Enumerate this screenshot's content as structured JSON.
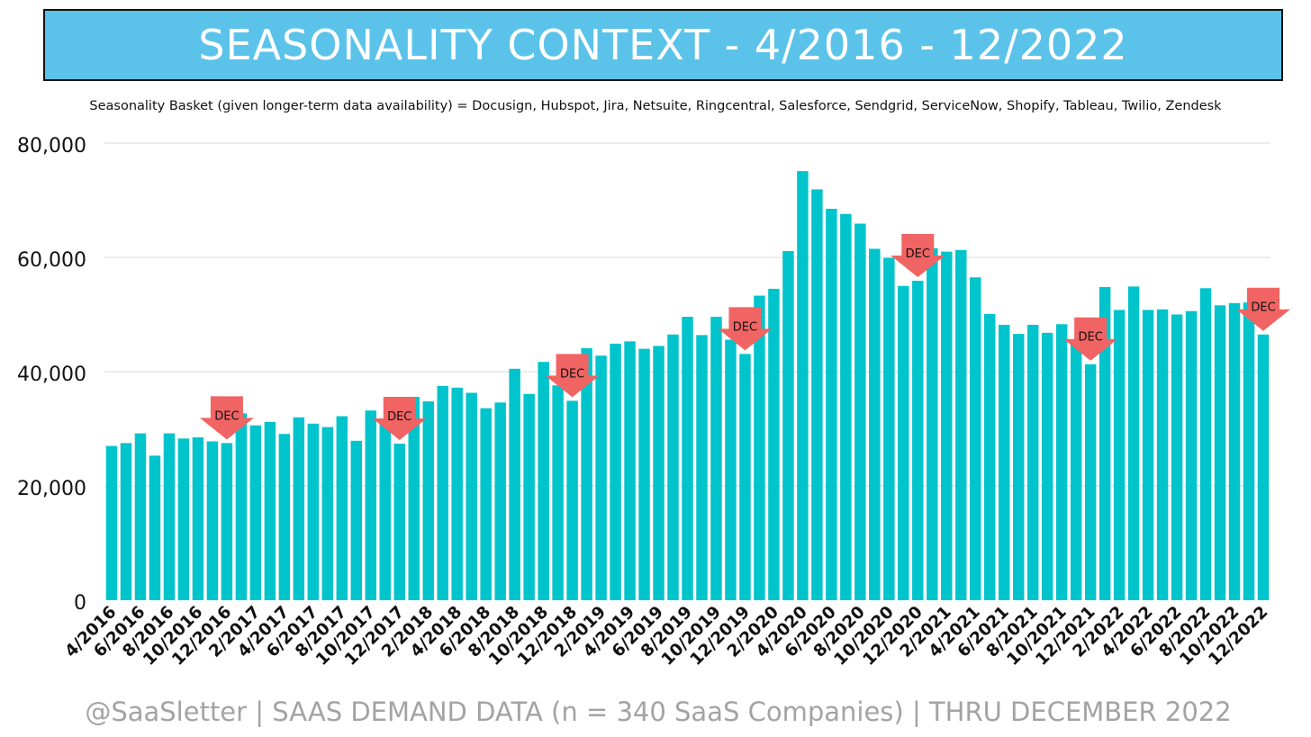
{
  "title": "SEASONALITY CONTEXT - 4/2016 - 12/2022",
  "subtitle": "Seasonality Basket (given longer-term data availability) = Docusign, Hubspot, Jira, Netsuite, Ringcentral, Salesforce, Sendgrid, ServiceNow, Shopify, Tableau, Twilio, Zendesk",
  "footer": "@SaaSletter | SAAS DEMAND DATA (n = 340 SaaS Companies) | THRU DECEMBER 2022",
  "colors": {
    "bar": "#00c4cc",
    "banner": "#5bc3ea",
    "arrow": "#f06464",
    "footer_text": "#a3a3a3"
  },
  "chart_data": {
    "type": "bar",
    "title": "SEASONALITY CONTEXT - 4/2016 - 12/2022",
    "xlabel": "",
    "ylabel": "",
    "ylim": [
      0,
      80000
    ],
    "yticks": [
      0,
      20000,
      40000,
      60000,
      80000
    ],
    "ytick_labels": [
      "0",
      "20,000",
      "40,000",
      "60,000",
      "80,000"
    ],
    "grid": true,
    "categories": [
      "4/2016",
      "5/2016",
      "6/2016",
      "7/2016",
      "8/2016",
      "9/2016",
      "10/2016",
      "11/2016",
      "12/2016",
      "1/2017",
      "2/2017",
      "3/2017",
      "4/2017",
      "5/2017",
      "6/2017",
      "7/2017",
      "8/2017",
      "9/2017",
      "10/2017",
      "11/2017",
      "12/2017",
      "1/2018",
      "2/2018",
      "3/2018",
      "4/2018",
      "5/2018",
      "6/2018",
      "7/2018",
      "8/2018",
      "9/2018",
      "10/2018",
      "11/2018",
      "12/2018",
      "1/2019",
      "2/2019",
      "3/2019",
      "4/2019",
      "5/2019",
      "6/2019",
      "7/2019",
      "8/2019",
      "9/2019",
      "10/2019",
      "11/2019",
      "12/2019",
      "1/2020",
      "2/2020",
      "3/2020",
      "4/2020",
      "5/2020",
      "6/2020",
      "7/2020",
      "8/2020",
      "9/2020",
      "10/2020",
      "11/2020",
      "12/2020",
      "1/2021",
      "2/2021",
      "3/2021",
      "4/2021",
      "5/2021",
      "6/2021",
      "7/2021",
      "8/2021",
      "9/2021",
      "10/2021",
      "11/2021",
      "12/2021",
      "1/2022",
      "2/2022",
      "3/2022",
      "4/2022",
      "5/2022",
      "6/2022",
      "7/2022",
      "8/2022",
      "9/2022",
      "10/2022",
      "11/2022",
      "12/2022"
    ],
    "values": [
      27000,
      27500,
      29200,
      25300,
      29200,
      28300,
      28500,
      27800,
      27500,
      32700,
      30600,
      31200,
      29100,
      32000,
      30900,
      30300,
      32200,
      27900,
      33200,
      31600,
      27400,
      35600,
      34800,
      37500,
      37200,
      36300,
      33600,
      34600,
      40500,
      36100,
      41700,
      37600,
      34900,
      44100,
      42800,
      44900,
      45300,
      44000,
      44500,
      46500,
      49600,
      46400,
      49600,
      45600,
      43100,
      53300,
      54500,
      61100,
      75100,
      71900,
      68500,
      67600,
      65900,
      61500,
      59900,
      55000,
      55900,
      61600,
      61000,
      61300,
      56500,
      50100,
      48200,
      46600,
      48200,
      46800,
      48300,
      44800,
      41300,
      54800,
      50800,
      54900,
      50800,
      50900,
      50000,
      50600,
      54600,
      51600,
      52000,
      52100,
      46500
    ],
    "xtick_labels": [
      "4/2016",
      "6/2016",
      "8/2016",
      "10/2016",
      "12/2016",
      "2/2017",
      "4/2017",
      "6/2017",
      "8/2017",
      "10/2017",
      "12/2017",
      "2/2018",
      "4/2018",
      "6/2018",
      "8/2018",
      "10/2018",
      "12/2018",
      "2/2019",
      "4/2019",
      "6/2019",
      "8/2019",
      "10/2019",
      "12/2019",
      "2/2020",
      "4/2020",
      "6/2020",
      "8/2020",
      "10/2020",
      "12/2020",
      "2/2021",
      "4/2021",
      "6/2021",
      "8/2021",
      "10/2021",
      "12/2021",
      "2/2022",
      "4/2022",
      "6/2022",
      "8/2022",
      "10/2022",
      "12/2022"
    ],
    "annotations": [
      {
        "text": "DEC",
        "category": "12/2016"
      },
      {
        "text": "DEC",
        "category": "12/2017"
      },
      {
        "text": "DEC",
        "category": "12/2018"
      },
      {
        "text": "DEC",
        "category": "12/2019"
      },
      {
        "text": "DEC",
        "category": "12/2020"
      },
      {
        "text": "DEC",
        "category": "12/2021"
      },
      {
        "text": "DEC",
        "category": "12/2022"
      }
    ]
  }
}
